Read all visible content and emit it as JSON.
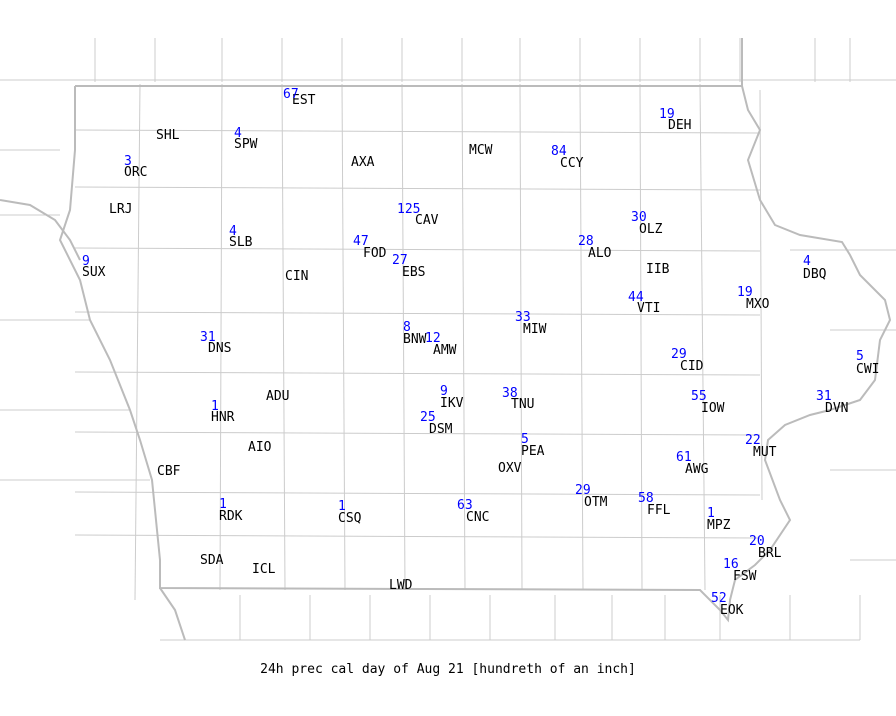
{
  "title": "24h prec cal day of Aug 21 [hundreth of an inch]",
  "colors": {
    "value": "#0000ff",
    "station": "#000000",
    "border": "#bbbbbb",
    "county": "#cccccc"
  },
  "stations": [
    {
      "code": "EST",
      "value": "67"
    },
    {
      "code": "SHL",
      "value": ""
    },
    {
      "code": "SPW",
      "value": "4"
    },
    {
      "code": "ORC",
      "value": "3"
    },
    {
      "code": "AXA",
      "value": ""
    },
    {
      "code": "MCW",
      "value": ""
    },
    {
      "code": "CCY",
      "value": "84"
    },
    {
      "code": "DEH",
      "value": "19"
    },
    {
      "code": "LRJ",
      "value": ""
    },
    {
      "code": "CAV",
      "value": "125"
    },
    {
      "code": "OLZ",
      "value": "30"
    },
    {
      "code": "SLB",
      "value": "4"
    },
    {
      "code": "FOD",
      "value": "47"
    },
    {
      "code": "EBS",
      "value": "27"
    },
    {
      "code": "ALO",
      "value": "28"
    },
    {
      "code": "SUX",
      "value": "9"
    },
    {
      "code": "CIN",
      "value": ""
    },
    {
      "code": "IIB",
      "value": ""
    },
    {
      "code": "DBQ",
      "value": "4"
    },
    {
      "code": "VTI",
      "value": "44"
    },
    {
      "code": "MXO",
      "value": "19"
    },
    {
      "code": "MIW",
      "value": "33"
    },
    {
      "code": "DNS",
      "value": "31"
    },
    {
      "code": "BNW",
      "value": "8"
    },
    {
      "code": "AMW",
      "value": "12"
    },
    {
      "code": "CID",
      "value": "29"
    },
    {
      "code": "CWI",
      "value": "5"
    },
    {
      "code": "ADU",
      "value": ""
    },
    {
      "code": "IKV",
      "value": "9"
    },
    {
      "code": "TNU",
      "value": "38"
    },
    {
      "code": "IOW",
      "value": "55"
    },
    {
      "code": "DVN",
      "value": "31"
    },
    {
      "code": "HNR",
      "value": "1"
    },
    {
      "code": "DSM",
      "value": "25"
    },
    {
      "code": "AIO",
      "value": ""
    },
    {
      "code": "PEA",
      "value": "5"
    },
    {
      "code": "MUT",
      "value": "22"
    },
    {
      "code": "CBF",
      "value": ""
    },
    {
      "code": "OXV",
      "value": ""
    },
    {
      "code": "AWG",
      "value": "61"
    },
    {
      "code": "OTM",
      "value": "29"
    },
    {
      "code": "FFL",
      "value": "58"
    },
    {
      "code": "RDK",
      "value": "1"
    },
    {
      "code": "CSQ",
      "value": "1"
    },
    {
      "code": "CNC",
      "value": "63"
    },
    {
      "code": "MPZ",
      "value": "1"
    },
    {
      "code": "BRL",
      "value": "20"
    },
    {
      "code": "SDA",
      "value": ""
    },
    {
      "code": "ICL",
      "value": ""
    },
    {
      "code": "FSW",
      "value": "16"
    },
    {
      "code": "LWD",
      "value": ""
    },
    {
      "code": "EOK",
      "value": "52"
    }
  ]
}
